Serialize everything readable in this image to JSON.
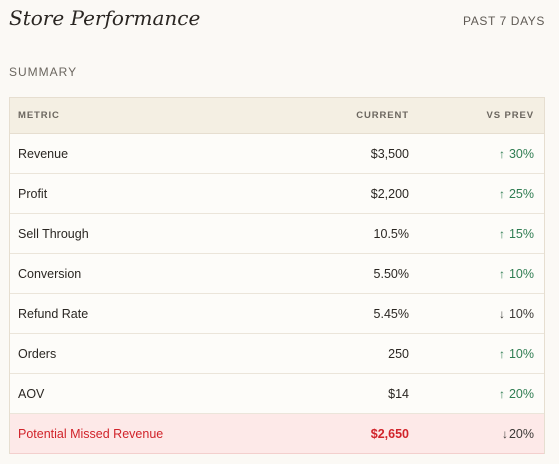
{
  "header": {
    "title": "Store Performance",
    "period": "PAST 7 DAYS"
  },
  "section": {
    "label": "SUMMARY"
  },
  "table": {
    "columns": {
      "metric": "METRIC",
      "current": "CURRENT",
      "vs_prev": "VS PREV"
    },
    "rows": [
      {
        "metric": "Revenue",
        "current": "$3,500",
        "arrow": "↑",
        "change": "30%",
        "direction": "up"
      },
      {
        "metric": "Profit",
        "current": "$2,200",
        "arrow": "↑",
        "change": "25%",
        "direction": "up"
      },
      {
        "metric": "Sell Through",
        "current": "10.5%",
        "arrow": "↑",
        "change": "15%",
        "direction": "up"
      },
      {
        "metric": "Conversion",
        "current": "5.50%",
        "arrow": "↑",
        "change": "10%",
        "direction": "up"
      },
      {
        "metric": "Refund Rate",
        "current": "5.45%",
        "arrow": "↓",
        "change": "10%",
        "direction": "down"
      },
      {
        "metric": "Orders",
        "current": "250",
        "arrow": "↑",
        "change": "10%",
        "direction": "up"
      },
      {
        "metric": "AOV",
        "current": "$14",
        "arrow": "↑",
        "change": "20%",
        "direction": "up"
      },
      {
        "metric": "Potential Missed Revenue",
        "current": "$2,650",
        "arrow": "↓",
        "change": "20%",
        "direction": "down"
      }
    ]
  },
  "colors": {
    "positive": "#2f7d52",
    "alert": "#d1232a",
    "alert_bg": "#fde9e8",
    "header_bg": "#f4efe3"
  }
}
